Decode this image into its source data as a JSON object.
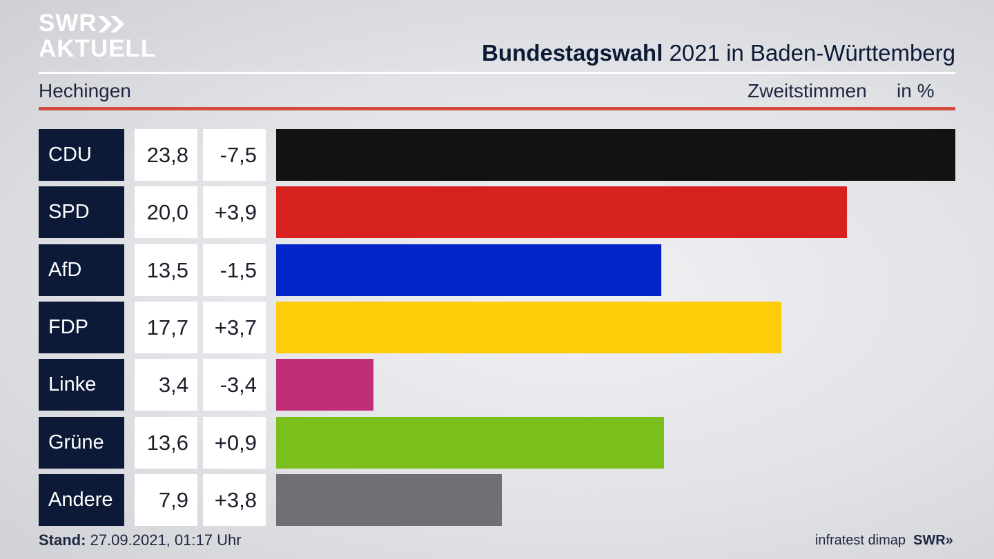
{
  "brand": {
    "line1": "SWR",
    "line2": "AKTUELL"
  },
  "header": {
    "title_bold": "Bundestagswahl",
    "title_rest": "2021 in Baden-Württemberg",
    "region": "Hechingen",
    "measure": "Zweitstimmen",
    "unit": "in %"
  },
  "footer": {
    "stand_label": "Stand:",
    "stand_value": "27.09.2021, 01:17 Uhr",
    "source": "infratest dimap",
    "logo": "SWR"
  },
  "colors": {
    "CDU": "#121212",
    "SPD": "#d72220",
    "AfD": "#0224c9",
    "FDP": "#fecd0a",
    "Linke": "#bf2d77",
    "Grüne": "#7abf1c",
    "Andere": "#6f7073"
  },
  "rows": [
    {
      "party": "CDU",
      "value_label": "23,8",
      "diff_label": "-7,5"
    },
    {
      "party": "SPD",
      "value_label": "20,0",
      "diff_label": "+3,9"
    },
    {
      "party": "AfD",
      "value_label": "13,5",
      "diff_label": "-1,5"
    },
    {
      "party": "FDP",
      "value_label": "17,7",
      "diff_label": "+3,7"
    },
    {
      "party": "Linke",
      "value_label": "3,4",
      "diff_label": "-3,4"
    },
    {
      "party": "Grüne",
      "value_label": "13,6",
      "diff_label": "+0,9"
    },
    {
      "party": "Andere",
      "value_label": "7,9",
      "diff_label": "+3,8"
    }
  ],
  "chart_data": {
    "type": "bar",
    "orientation": "horizontal",
    "categories": [
      "CDU",
      "SPD",
      "AfD",
      "FDP",
      "Linke",
      "Grüne",
      "Andere"
    ],
    "values": [
      23.8,
      20.0,
      13.5,
      17.7,
      3.4,
      13.6,
      7.9
    ],
    "diff": [
      -7.5,
      3.9,
      -1.5,
      3.7,
      -3.4,
      0.9,
      3.8
    ],
    "title": "Bundestagswahl 2021 in Baden-Württemberg",
    "subtitle": "Hechingen",
    "xlabel": "Zweitstimmen",
    "ylabel": "",
    "unit": "in %",
    "xlim": [
      0,
      23.8
    ],
    "grid": false
  }
}
